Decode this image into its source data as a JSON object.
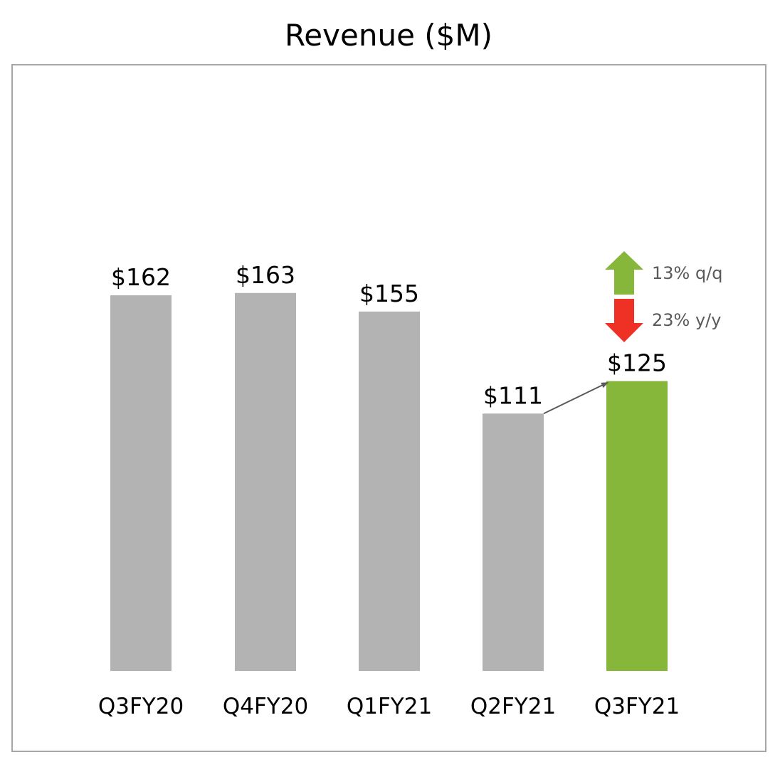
{
  "chart_data": {
    "type": "bar",
    "title": "Revenue ($M)",
    "xlabel": "",
    "ylabel": "",
    "ylim": [
      0,
      180
    ],
    "grid": false,
    "categories": [
      "Q3FY20",
      "Q4FY20",
      "Q1FY21",
      "Q2FY21",
      "Q3FY21"
    ],
    "values": [
      162,
      163,
      155,
      111,
      125
    ],
    "value_labels": [
      "$162",
      "$163",
      "$155",
      "$111",
      "$125"
    ],
    "highlight_index": 4,
    "annotations": {
      "qq": {
        "label": "13% q/q",
        "direction": "up"
      },
      "yy": {
        "label": "23% y/y",
        "direction": "down"
      }
    }
  },
  "colors": {
    "bar": "#b3b3b3",
    "highlight": "#86b63a",
    "up_arrow": "#86b63a",
    "down_arrow": "#ee3124",
    "connector": "#595959",
    "frame": "#a6a6a6"
  }
}
